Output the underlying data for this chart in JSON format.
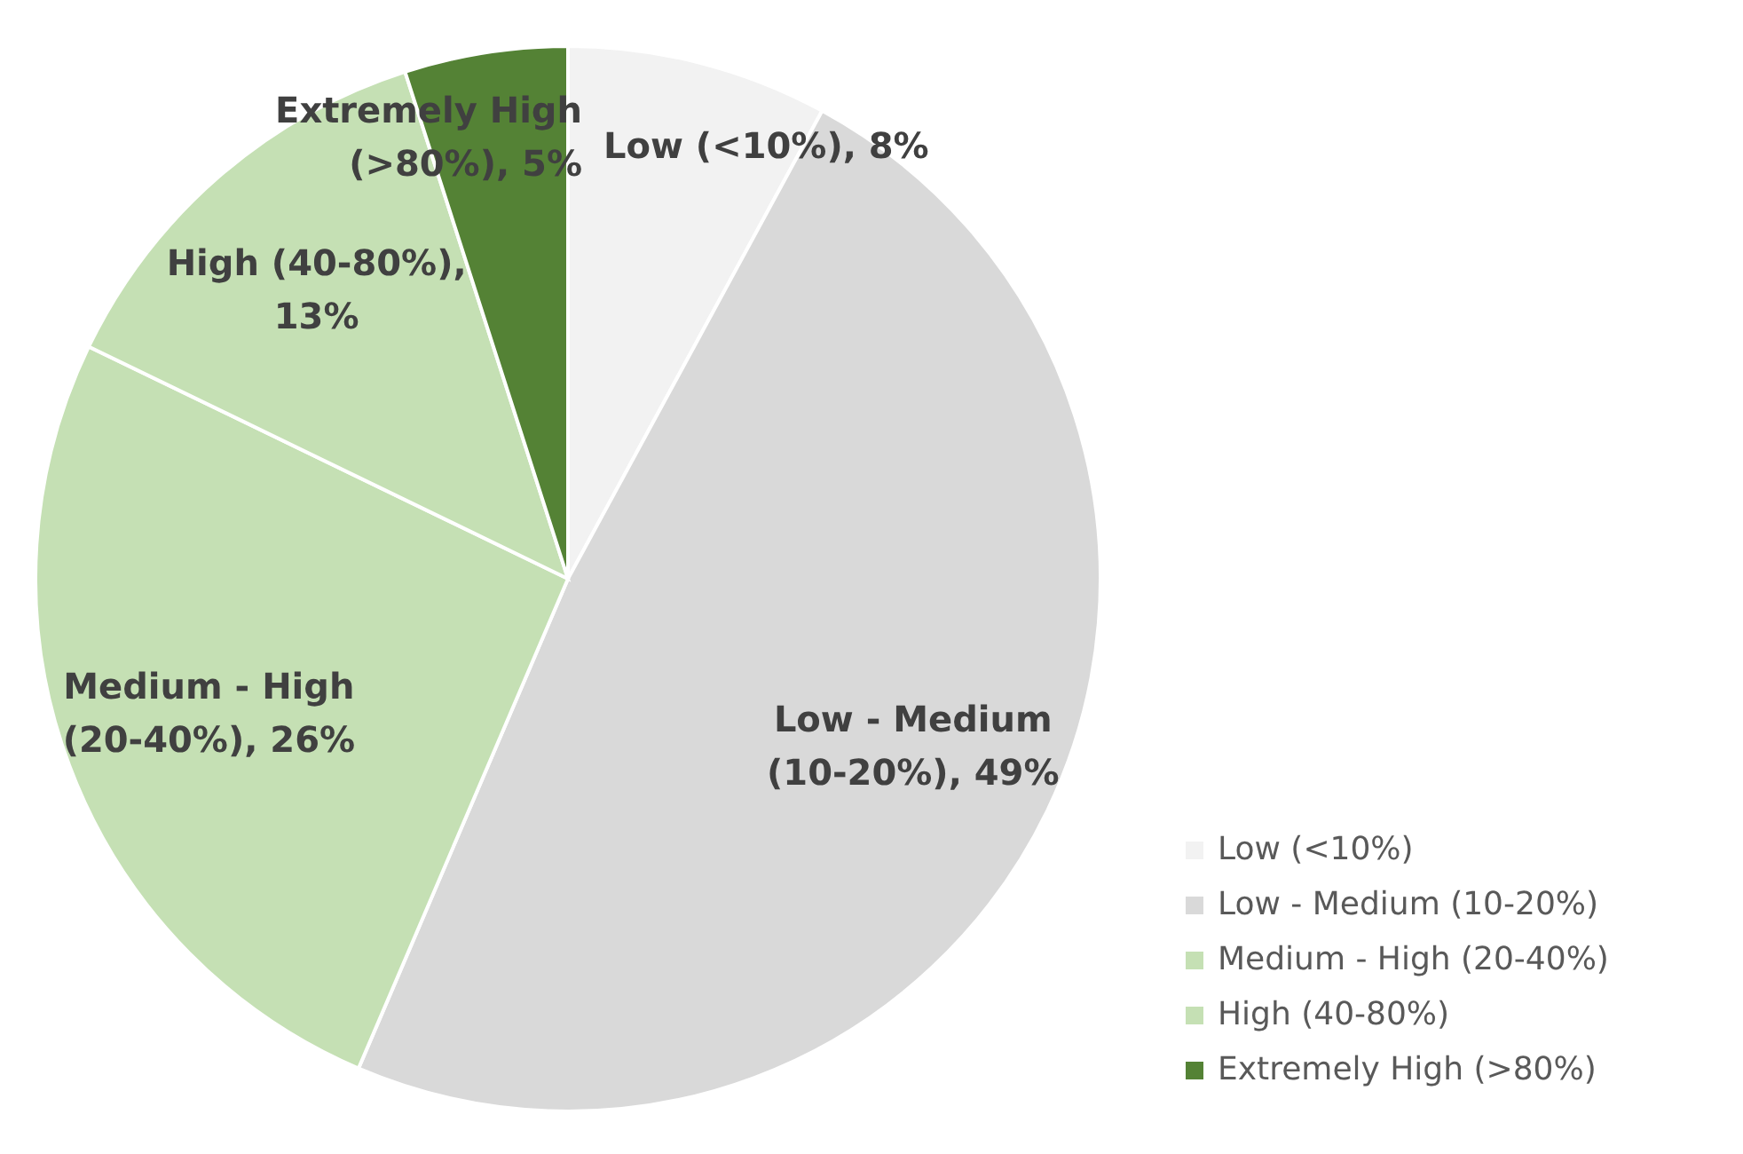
{
  "chart_data": {
    "type": "pie",
    "categories": [
      "Low (<10%)",
      "Low - Medium (10-20%)",
      "Medium - High (20-40%)",
      "High (40-80%)",
      "Extremely High (>80%)"
    ],
    "values": [
      8,
      49,
      26,
      13,
      5
    ],
    "value_labels": [
      "Low (<10%), 8%",
      "Low - Medium (10-20%), 49%",
      "Medium - High (20-40%), 26%",
      "High (40-80%), 13%",
      "Extremely High (>80%), 5%"
    ],
    "colors": [
      "#f2f2f2",
      "#d9d9d9",
      "#c5e0b4",
      "#c5e0b4",
      "#548235"
    ],
    "legend": "bottom right"
  }
}
